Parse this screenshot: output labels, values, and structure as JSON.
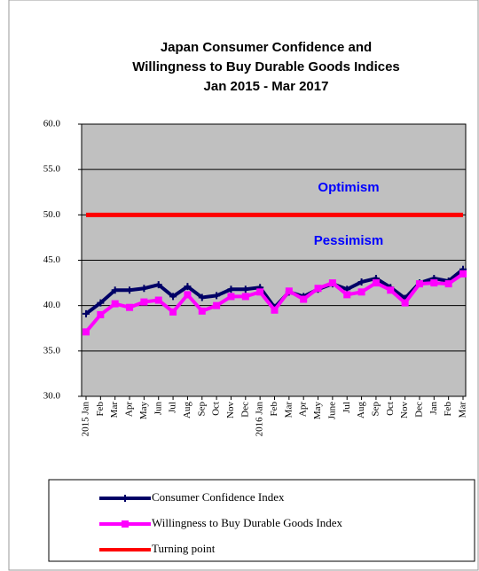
{
  "chart_data": {
    "type": "line",
    "title": [
      "Japan Consumer Confidence and",
      "Willingness to Buy Durable Goods Indices",
      "Jan 2015 - Mar 2017"
    ],
    "categories": [
      "2015 Jan",
      "Feb",
      "Mar",
      "Apr",
      "May",
      "Jun",
      "Jul",
      "Aug",
      "Sep",
      "Oct",
      "Nov",
      "Dec",
      "2016 Jan",
      "Feb",
      "Mar",
      "Apr",
      "May",
      "June",
      "Jul",
      "Aug",
      "Sep",
      "Oct",
      "Nov",
      "Dec",
      "Jan",
      "Feb",
      "Mar"
    ],
    "series": [
      {
        "name": "Consumer Confidence Index",
        "color": "#000066",
        "marker": "plus",
        "values": [
          39.1,
          40.3,
          41.7,
          41.7,
          41.9,
          42.3,
          41.0,
          42.1,
          40.9,
          41.1,
          41.8,
          41.8,
          42.0,
          39.8,
          41.5,
          41.0,
          41.8,
          42.4,
          41.8,
          42.6,
          43.0,
          42.0,
          40.8,
          42.5,
          43.0,
          42.7,
          44.0
        ]
      },
      {
        "name": "Willingness to Buy Durable Goods Index",
        "color": "#ff00ff",
        "marker": "square",
        "values": [
          37.1,
          39.0,
          40.2,
          39.8,
          40.4,
          40.6,
          39.3,
          41.2,
          39.4,
          40.0,
          41.0,
          41.0,
          41.5,
          39.5,
          41.6,
          40.7,
          41.9,
          42.5,
          41.2,
          41.5,
          42.5,
          41.7,
          40.3,
          42.4,
          42.5,
          42.4,
          43.5
        ]
      },
      {
        "name": "Turning point",
        "color": "#ff0000",
        "marker": "none",
        "values": [
          50,
          50,
          50,
          50,
          50,
          50,
          50,
          50,
          50,
          50,
          50,
          50,
          50,
          50,
          50,
          50,
          50,
          50,
          50,
          50,
          50,
          50,
          50,
          50,
          50,
          50,
          50
        ]
      }
    ],
    "annotations": [
      "Optimism",
      "Pessimism"
    ],
    "ylim": [
      30,
      60
    ],
    "yticks": [
      {
        "value": 30,
        "label": "30.0"
      },
      {
        "value": 35,
        "label": "35.0"
      },
      {
        "value": 40,
        "label": "40.0"
      },
      {
        "value": 45,
        "label": "45.0"
      },
      {
        "value": 50,
        "label": "50.0"
      },
      {
        "value": 55,
        "label": "55.0"
      },
      {
        "value": 60,
        "label": "60.0"
      }
    ],
    "grid": true
  }
}
